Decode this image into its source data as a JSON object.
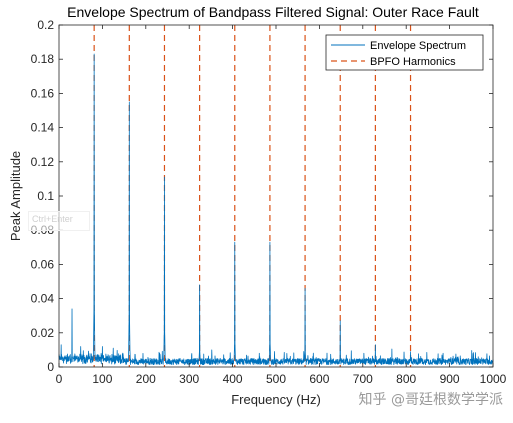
{
  "chart_data": {
    "type": "line",
    "title": "Envelope Spectrum of Bandpass Filtered Signal: Outer Race Fault",
    "xlabel": "Frequency (Hz)",
    "ylabel": "Peak Amplitude",
    "xlim": [
      0,
      1000
    ],
    "ylim": [
      0,
      0.2
    ],
    "xticks": [
      0,
      100,
      200,
      300,
      400,
      500,
      600,
      700,
      800,
      900,
      1000
    ],
    "xtick_labels": [
      "0",
      "100",
      "200",
      "300",
      "400",
      "500",
      "600",
      "700",
      "800",
      "900",
      "1000"
    ],
    "yticks": [
      0,
      0.02,
      0.04,
      0.06,
      0.08,
      0.1,
      0.12,
      0.14,
      0.16,
      0.18,
      0.2
    ],
    "ytick_labels": [
      "0",
      "0.02",
      "0.04",
      "0.06",
      "0.08",
      "0.1",
      "0.12",
      "0.14",
      "0.16",
      "0.18",
      "0.2"
    ],
    "grid": false,
    "legend_position": "top-right",
    "series": [
      {
        "name": "Envelope Spectrum",
        "color": "#0072BD",
        "style": "solid",
        "peaks": [
          {
            "x": 81,
            "y": 0.183
          },
          {
            "x": 162,
            "y": 0.155
          },
          {
            "x": 243,
            "y": 0.111
          },
          {
            "x": 324,
            "y": 0.048
          },
          {
            "x": 405,
            "y": 0.073
          },
          {
            "x": 486,
            "y": 0.073
          },
          {
            "x": 567,
            "y": 0.046
          },
          {
            "x": 648,
            "y": 0.027
          },
          {
            "x": 729,
            "y": 0.013
          },
          {
            "x": 810,
            "y": 0.009
          },
          {
            "x": 30,
            "y": 0.034
          },
          {
            "x": 5,
            "y": 0.013
          },
          {
            "x": 50,
            "y": 0.012
          },
          {
            "x": 100,
            "y": 0.012
          },
          {
            "x": 125,
            "y": 0.011
          },
          {
            "x": 885,
            "y": 0.008
          },
          {
            "x": 966,
            "y": 0.006
          }
        ],
        "noise_floor": 0.004
      },
      {
        "name": "BPFO Harmonics",
        "color": "#D95319",
        "style": "dashed",
        "x": [
          81,
          162,
          243,
          324,
          405,
          486,
          567,
          648,
          729,
          810
        ]
      }
    ]
  },
  "overlay": {
    "ghost_text": "Ctrl+Enter",
    "watermark": "知乎 @哥廷根数学学派"
  }
}
